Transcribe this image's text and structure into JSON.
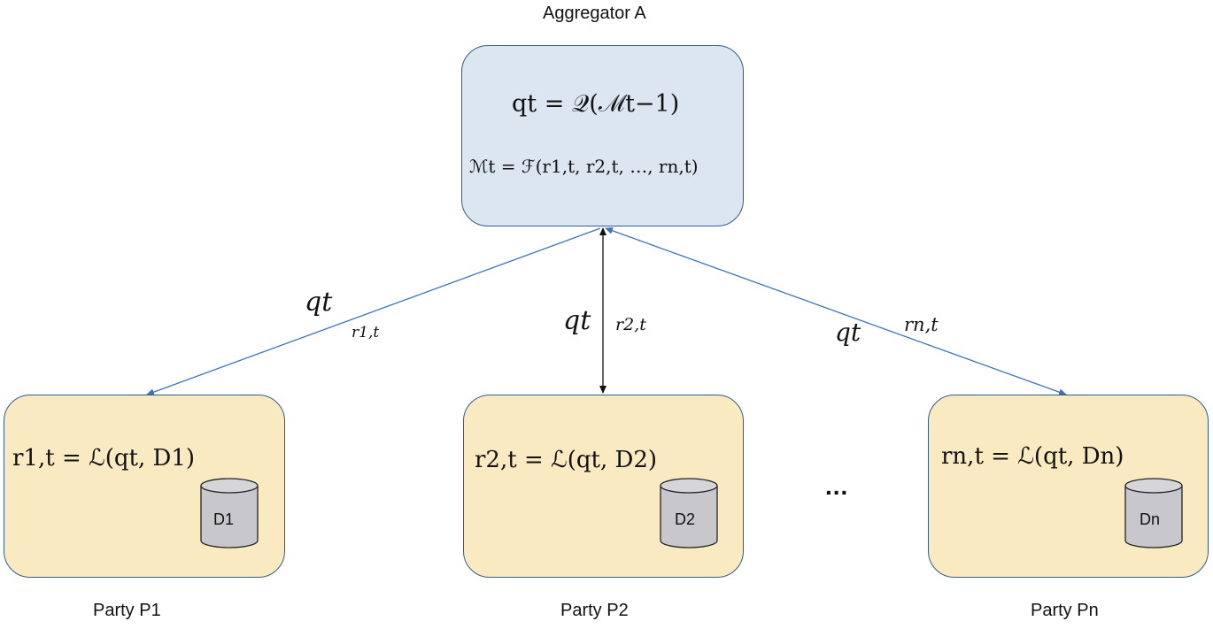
{
  "aggregator": {
    "title": "Aggregator A",
    "query_eq": "qt = 𝒬(ℳt−1)",
    "model_eq": "ℳt = ℱ(r1,t, r2,t, …, rn,t)"
  },
  "parties": [
    {
      "name": "Party P1",
      "response_eq": "r1,t = ℒ(qt, D1)",
      "db_label": "D1"
    },
    {
      "name": "Party P2",
      "response_eq": "r2,t = ℒ(qt, D2)",
      "db_label": "D2"
    },
    {
      "name": "Party Pn",
      "response_eq": "rn,t = ℒ(qt, Dn)",
      "db_label": "Dn"
    }
  ],
  "edges": [
    {
      "query_label": "qt",
      "response_label": "r1,t"
    },
    {
      "query_label": "qt",
      "response_label": "r2,t"
    },
    {
      "query_label": "qt",
      "response_label": "rn,t"
    }
  ],
  "ellipsis": "...",
  "colors": {
    "aggregator_fill": "#dbe6f0",
    "party_fill": "#faeac2",
    "border": "#2e5e8e",
    "arrow_blue": "#3d74b5",
    "arrow_black": "#111111",
    "db_fill": "#c8c8cc"
  }
}
